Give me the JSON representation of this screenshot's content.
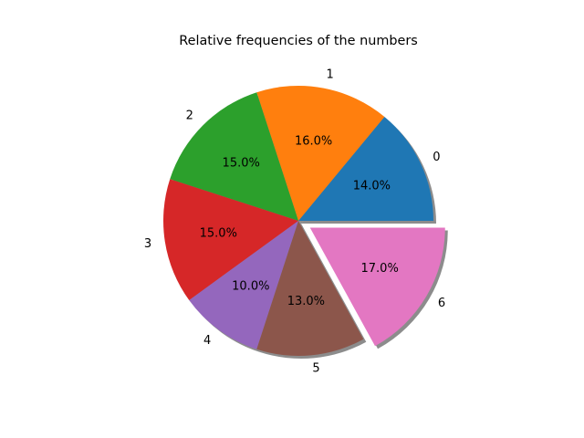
{
  "chart_data": {
    "type": "pie",
    "title": "Relative frequencies of the numbers",
    "labels": [
      "0",
      "1",
      "2",
      "3",
      "4",
      "5",
      "6"
    ],
    "values": [
      14.0,
      16.0,
      15.0,
      15.0,
      10.0,
      13.0,
      17.0
    ],
    "value_labels": [
      "14.0%",
      "16.0%",
      "15.0%",
      "15.0%",
      "10.0%",
      "13.0%",
      "17.0%"
    ],
    "colors": [
      "#1f77b4",
      "#ff7f0e",
      "#2ca02c",
      "#d62728",
      "#9467bd",
      "#8c564b",
      "#e377c2"
    ],
    "explode": [
      0,
      0,
      0,
      0,
      0,
      0,
      0.1
    ],
    "shadow": true,
    "start_angle_deg": 0,
    "direction": "counterclockwise"
  }
}
